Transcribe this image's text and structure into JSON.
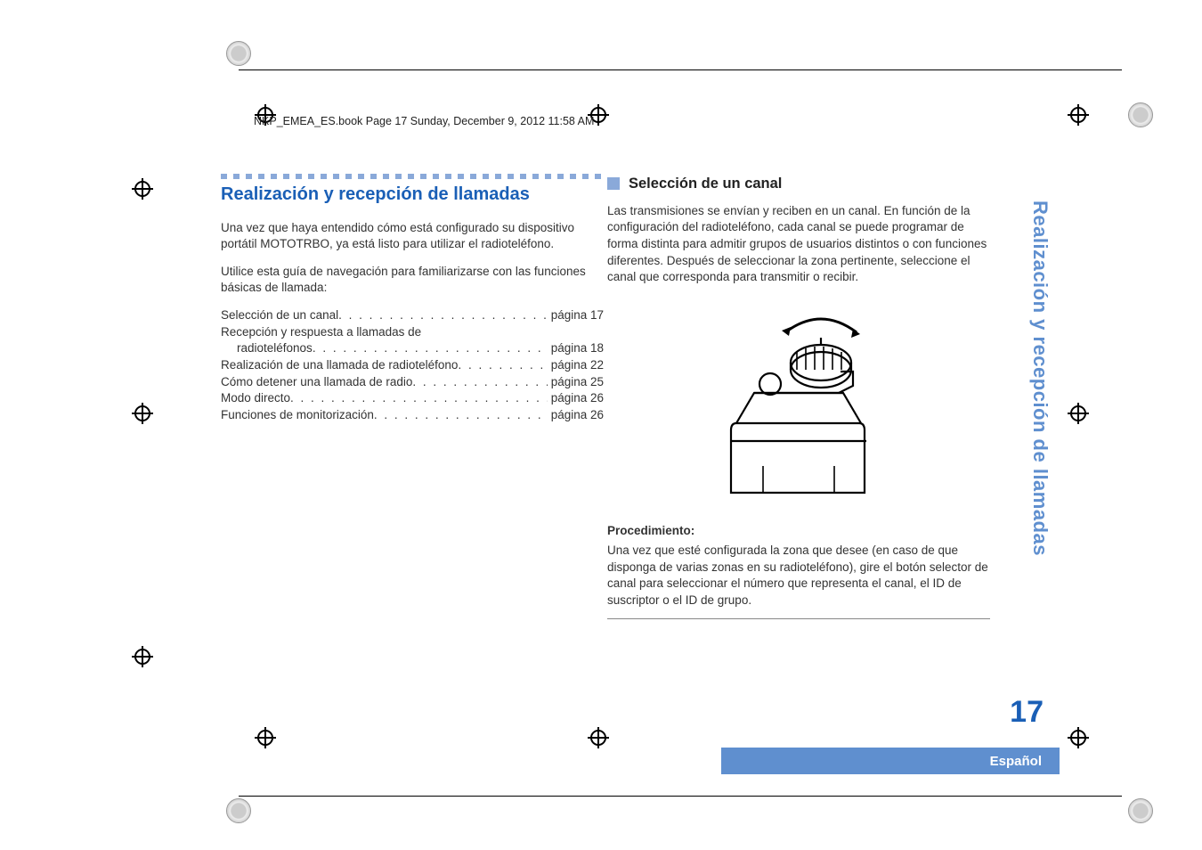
{
  "runningHead": "NKP_EMEA_ES.book  Page 17  Sunday, December 9, 2012  11:58 AM",
  "left": {
    "title": "Realización y recepción de llamadas",
    "intro1": "Una vez que haya entendido cómo está configurado su dispositivo portátil MOTOTRBO, ya está listo para utilizar el radioteléfono.",
    "intro2": "Utilice esta guía de navegación para familiarizarse con las funciones básicas de llamada:",
    "toc": [
      {
        "text": "Selección de un canal",
        "page": "página 17",
        "indent": false,
        "dots": true
      },
      {
        "text": "Recepción y respuesta a llamadas de",
        "page": "",
        "indent": false,
        "dots": false
      },
      {
        "text": "radioteléfonos",
        "page": "página 18",
        "indent": true,
        "dots": true
      },
      {
        "text": "Realización de una llamada de radioteléfono",
        "page": "página 22",
        "indent": false,
        "dots": true
      },
      {
        "text": "Cómo detener una llamada de radio",
        "page": "página 25",
        "indent": false,
        "dots": true
      },
      {
        "text": "Modo directo",
        "page": "página 26",
        "indent": false,
        "dots": true
      },
      {
        "text": "Funciones de monitorización",
        "page": "página 26",
        "indent": false,
        "dots": true
      }
    ]
  },
  "right": {
    "h2": "Selección de un canal",
    "para": "Las transmisiones se envían y reciben en un canal. En función de la configuración del radioteléfono, cada canal se puede programar de forma distinta para admitir grupos de usuarios distintos o con funciones diferentes. Después de seleccionar la zona pertinente, seleccione el canal que corresponda para transmitir o recibir.",
    "procHead": "Procedimiento:",
    "procBody": "Una vez que esté configurada la zona que desee (en caso de que disponga de varias zonas en su radioteléfono), gire el botón selector de canal para seleccionar el número que representa el canal, el ID de suscriptor o el ID de grupo."
  },
  "sideTab": "Realización y recepción de llamadas",
  "pageNumber": "17",
  "langBar": "Español",
  "colors": {
    "accent": "#1a5fb6",
    "tabBlue": "#5f8fcf",
    "dashBlue": "#8aa9d9"
  }
}
